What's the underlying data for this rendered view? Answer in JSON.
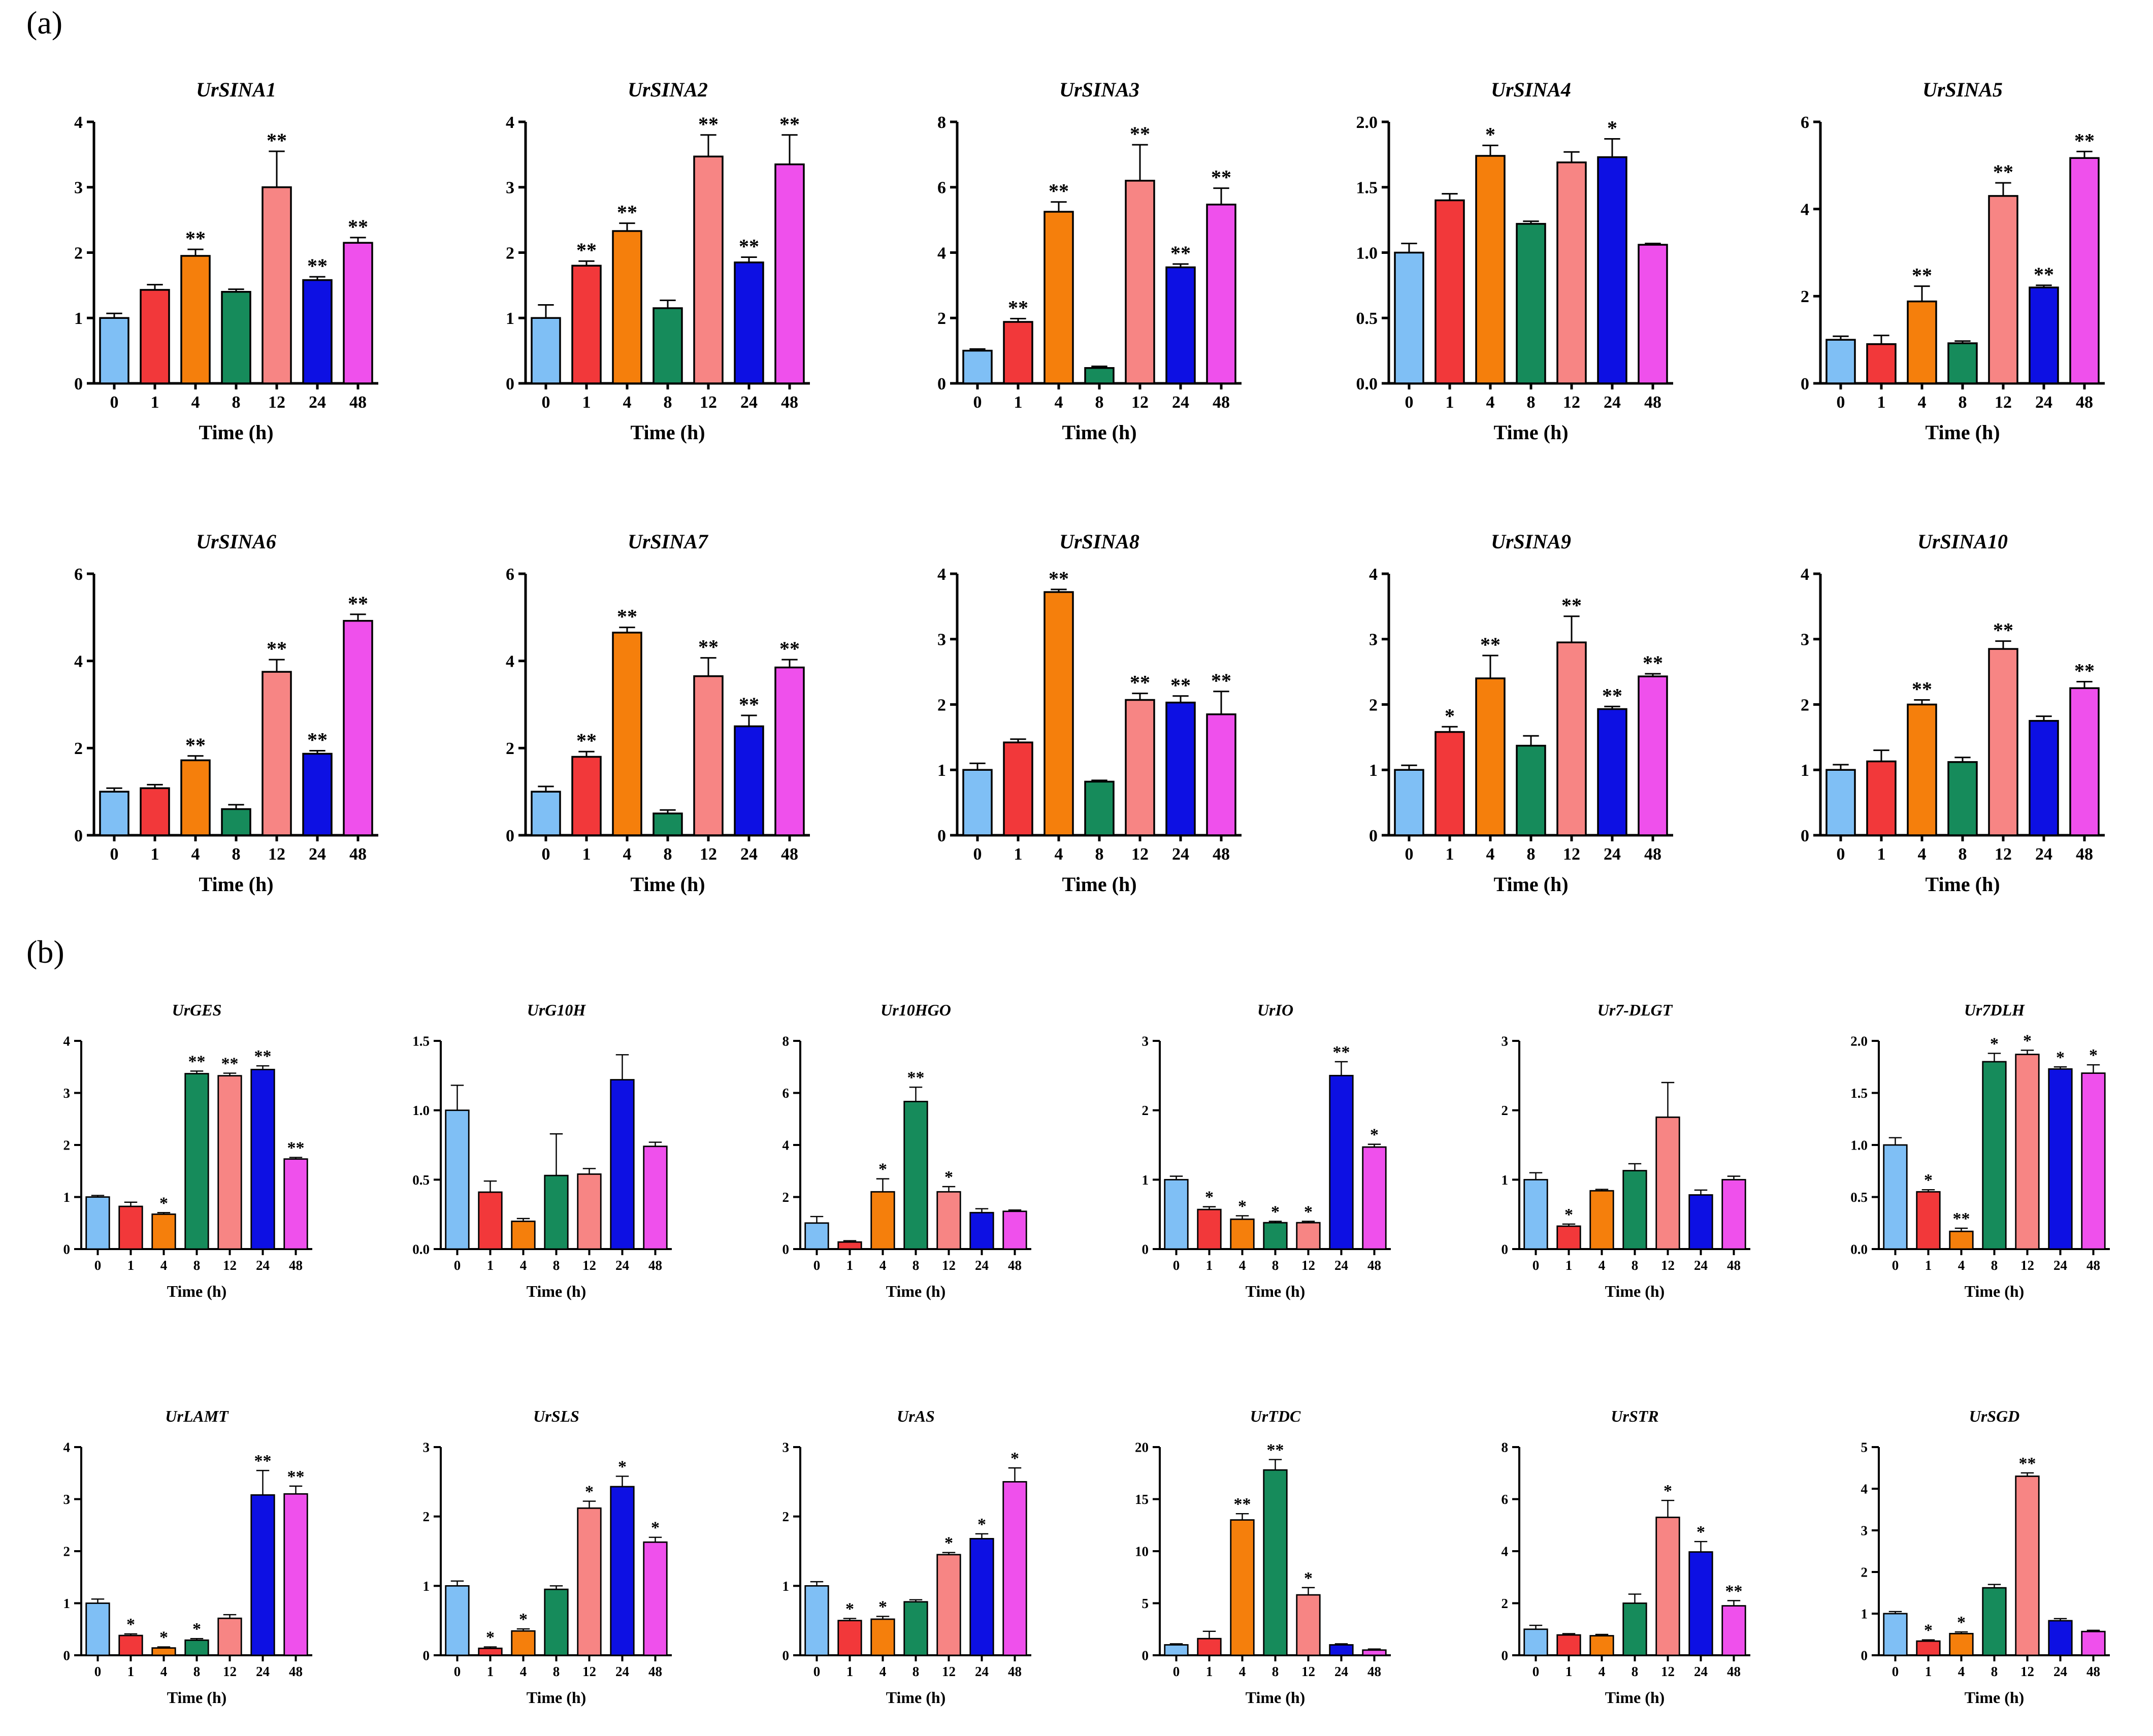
{
  "panels": {
    "a": "(a)",
    "b": "(b)"
  },
  "colors": [
    "#7fbff5",
    "#f2383a",
    "#f57f0c",
    "#168b5b",
    "#f78584",
    "#0d10e3",
    "#ef50ec"
  ],
  "chart_data": [
    {
      "type": "bar",
      "title": "UrSINA1",
      "xlabel": "Time (h)",
      "categories": [
        "0",
        "1",
        "4",
        "8",
        "12",
        "24",
        "48"
      ],
      "values": [
        1.0,
        1.43,
        1.95,
        1.4,
        3.0,
        1.58,
        2.15
      ],
      "errors": [
        0.07,
        0.08,
        0.1,
        0.04,
        0.55,
        0.05,
        0.08
      ],
      "significance": [
        "",
        "",
        "**",
        "",
        "**",
        "**",
        "**"
      ],
      "ylim": [
        0,
        4
      ],
      "yticks": [
        "0",
        "1",
        "2",
        "3",
        "4"
      ]
    },
    {
      "type": "bar",
      "title": "UrSINA2",
      "xlabel": "Time (h)",
      "categories": [
        "0",
        "1",
        "4",
        "8",
        "12",
        "24",
        "48"
      ],
      "values": [
        1.0,
        1.8,
        2.33,
        1.15,
        3.47,
        1.85,
        3.35
      ],
      "errors": [
        0.2,
        0.07,
        0.12,
        0.12,
        0.33,
        0.08,
        0.45
      ],
      "significance": [
        "",
        "**",
        "**",
        "",
        "**",
        "**",
        "**"
      ],
      "ylim": [
        0,
        4
      ],
      "yticks": [
        "0",
        "1",
        "2",
        "3",
        "4"
      ]
    },
    {
      "type": "bar",
      "title": "UrSINA3",
      "xlabel": "Time (h)",
      "categories": [
        "0",
        "1",
        "4",
        "8",
        "12",
        "24",
        "48"
      ],
      "values": [
        1.0,
        1.88,
        5.25,
        0.47,
        6.2,
        3.55,
        5.47
      ],
      "errors": [
        0.05,
        0.1,
        0.3,
        0.05,
        1.1,
        0.1,
        0.5
      ],
      "significance": [
        "",
        "**",
        "**",
        "",
        "**",
        "**",
        "**"
      ],
      "ylim": [
        0,
        8
      ],
      "yticks": [
        "0",
        "2",
        "4",
        "6",
        "8"
      ]
    },
    {
      "type": "bar",
      "title": "UrSINA4",
      "xlabel": "Time (h)",
      "categories": [
        "0",
        "1",
        "4",
        "8",
        "12",
        "24",
        "48"
      ],
      "values": [
        1.0,
        1.4,
        1.74,
        1.22,
        1.69,
        1.73,
        1.06
      ],
      "errors": [
        0.07,
        0.05,
        0.08,
        0.02,
        0.08,
        0.14,
        0.01
      ],
      "significance": [
        "",
        "",
        "*",
        "",
        "",
        "*",
        ""
      ],
      "ylim": [
        0,
        2.0
      ],
      "yticks": [
        "0.0",
        "0.5",
        "1.0",
        "1.5",
        "2.0"
      ]
    },
    {
      "type": "bar",
      "title": "UrSINA5",
      "xlabel": "Time (h)",
      "categories": [
        "0",
        "1",
        "4",
        "8",
        "12",
        "24",
        "48"
      ],
      "values": [
        1.0,
        0.9,
        1.88,
        0.92,
        4.3,
        2.2,
        5.17
      ],
      "errors": [
        0.08,
        0.2,
        0.35,
        0.05,
        0.3,
        0.05,
        0.15
      ],
      "significance": [
        "",
        "",
        "**",
        "",
        "**",
        "**",
        "**"
      ],
      "ylim": [
        0,
        6
      ],
      "yticks": [
        "0",
        "2",
        "4",
        "6"
      ]
    },
    {
      "type": "bar",
      "title": "UrSINA6",
      "xlabel": "Time (h)",
      "categories": [
        "0",
        "1",
        "4",
        "8",
        "12",
        "24",
        "48"
      ],
      "values": [
        1.0,
        1.08,
        1.72,
        0.6,
        3.75,
        1.87,
        4.92
      ],
      "errors": [
        0.08,
        0.08,
        0.1,
        0.1,
        0.28,
        0.07,
        0.15
      ],
      "significance": [
        "",
        "",
        "**",
        "",
        "**",
        "**",
        "**"
      ],
      "ylim": [
        0,
        6
      ],
      "yticks": [
        "0",
        "2",
        "4",
        "6"
      ]
    },
    {
      "type": "bar",
      "title": "UrSINA7",
      "xlabel": "Time (h)",
      "categories": [
        "0",
        "1",
        "4",
        "8",
        "12",
        "24",
        "48"
      ],
      "values": [
        1.0,
        1.8,
        4.65,
        0.5,
        3.65,
        2.5,
        3.85
      ],
      "errors": [
        0.12,
        0.12,
        0.12,
        0.08,
        0.42,
        0.25,
        0.18
      ],
      "significance": [
        "",
        "**",
        "**",
        "",
        "**",
        "**",
        "**"
      ],
      "ylim": [
        0,
        6
      ],
      "yticks": [
        "0",
        "2",
        "4",
        "6"
      ]
    },
    {
      "type": "bar",
      "title": "UrSINA8",
      "xlabel": "Time (h)",
      "categories": [
        "0",
        "1",
        "4",
        "8",
        "12",
        "24",
        "48"
      ],
      "values": [
        1.0,
        1.42,
        3.72,
        0.82,
        2.07,
        2.03,
        1.85
      ],
      "errors": [
        0.1,
        0.05,
        0.04,
        0.02,
        0.1,
        0.1,
        0.35
      ],
      "significance": [
        "",
        "",
        "**",
        "",
        "**",
        "**",
        "**"
      ],
      "ylim": [
        0,
        4
      ],
      "yticks": [
        "0",
        "1",
        "2",
        "3",
        "4"
      ]
    },
    {
      "type": "bar",
      "title": "UrSINA9",
      "xlabel": "Time (h)",
      "categories": [
        "0",
        "1",
        "4",
        "8",
        "12",
        "24",
        "48"
      ],
      "values": [
        1.0,
        1.58,
        2.4,
        1.37,
        2.95,
        1.93,
        2.43
      ],
      "errors": [
        0.07,
        0.08,
        0.35,
        0.15,
        0.4,
        0.04,
        0.04
      ],
      "significance": [
        "",
        "*",
        "**",
        "",
        "**",
        "**",
        "**"
      ],
      "ylim": [
        0,
        4
      ],
      "yticks": [
        "0",
        "1",
        "2",
        "3",
        "4"
      ]
    },
    {
      "type": "bar",
      "title": "UrSINA10",
      "xlabel": "Time (h)",
      "categories": [
        "0",
        "1",
        "4",
        "8",
        "12",
        "24",
        "48"
      ],
      "values": [
        1.0,
        1.13,
        2.0,
        1.12,
        2.85,
        1.75,
        2.25
      ],
      "errors": [
        0.08,
        0.17,
        0.07,
        0.07,
        0.12,
        0.07,
        0.1
      ],
      "significance": [
        "",
        "",
        "**",
        "",
        "**",
        "",
        "**"
      ],
      "ylim": [
        0,
        4
      ],
      "yticks": [
        "0",
        "1",
        "2",
        "3",
        "4"
      ]
    },
    {
      "type": "bar",
      "title": "UrGES",
      "xlabel": "Time (h)",
      "categories": [
        "0",
        "1",
        "4",
        "8",
        "12",
        "24",
        "48"
      ],
      "values": [
        1.0,
        0.82,
        0.67,
        3.37,
        3.33,
        3.45,
        1.73
      ],
      "errors": [
        0.03,
        0.08,
        0.03,
        0.05,
        0.05,
        0.07,
        0.03
      ],
      "significance": [
        "",
        "",
        "*",
        "**",
        "**",
        "**",
        "**"
      ],
      "ylim": [
        0,
        4
      ],
      "yticks": [
        "0",
        "1",
        "2",
        "3",
        "4"
      ]
    },
    {
      "type": "bar",
      "title": "UrG10H",
      "xlabel": "Time (h)",
      "categories": [
        "0",
        "1",
        "4",
        "8",
        "12",
        "24",
        "48"
      ],
      "values": [
        1.0,
        0.41,
        0.2,
        0.53,
        0.54,
        1.22,
        0.74
      ],
      "errors": [
        0.18,
        0.08,
        0.02,
        0.3,
        0.04,
        0.18,
        0.03
      ],
      "significance": [
        "",
        "",
        "",
        "",
        "",
        "",
        ""
      ],
      "ylim": [
        0,
        1.5
      ],
      "yticks": [
        "0.0",
        "0.5",
        "1.0",
        "1.5"
      ]
    },
    {
      "type": "bar",
      "title": "Ur10HGO",
      "xlabel": "Time (h)",
      "categories": [
        "0",
        "1",
        "4",
        "8",
        "12",
        "24",
        "48"
      ],
      "values": [
        1.0,
        0.27,
        2.2,
        5.67,
        2.2,
        1.4,
        1.45
      ],
      "errors": [
        0.25,
        0.05,
        0.5,
        0.55,
        0.2,
        0.15,
        0.05
      ],
      "significance": [
        "",
        "",
        "*",
        "**",
        "*",
        "",
        ""
      ],
      "ylim": [
        0,
        8
      ],
      "yticks": [
        "0",
        "2",
        "4",
        "6",
        "8"
      ]
    },
    {
      "type": "bar",
      "title": "UrIO",
      "xlabel": "Time (h)",
      "categories": [
        "0",
        "1",
        "4",
        "8",
        "12",
        "24",
        "48"
      ],
      "values": [
        1.0,
        0.57,
        0.43,
        0.38,
        0.38,
        2.5,
        1.47
      ],
      "errors": [
        0.05,
        0.04,
        0.05,
        0.02,
        0.02,
        0.2,
        0.04
      ],
      "significance": [
        "",
        "*",
        "*",
        "*",
        "*",
        "**",
        "*"
      ],
      "ylim": [
        0,
        3
      ],
      "yticks": [
        "0",
        "1",
        "2",
        "3"
      ]
    },
    {
      "type": "bar",
      "title": "Ur7-DLGT",
      "xlabel": "Time (h)",
      "categories": [
        "0",
        "1",
        "4",
        "8",
        "12",
        "24",
        "48"
      ],
      "values": [
        1.0,
        0.33,
        0.84,
        1.13,
        1.9,
        0.78,
        1.0
      ],
      "errors": [
        0.1,
        0.03,
        0.02,
        0.1,
        0.5,
        0.07,
        0.05
      ],
      "significance": [
        "",
        "*",
        "",
        "",
        "",
        "",
        ""
      ],
      "ylim": [
        0,
        3
      ],
      "yticks": [
        "0",
        "1",
        "2",
        "3"
      ]
    },
    {
      "type": "bar",
      "title": "Ur7DLH",
      "xlabel": "Time (h)",
      "categories": [
        "0",
        "1",
        "4",
        "8",
        "12",
        "24",
        "48"
      ],
      "values": [
        1.0,
        0.55,
        0.17,
        1.8,
        1.87,
        1.73,
        1.69
      ],
      "errors": [
        0.07,
        0.02,
        0.03,
        0.08,
        0.04,
        0.02,
        0.08
      ],
      "significance": [
        "",
        "*",
        "**",
        "*",
        "*",
        "*",
        "*"
      ],
      "ylim": [
        0,
        2.0
      ],
      "yticks": [
        "0.0",
        "0.5",
        "1.0",
        "1.5",
        "2.0"
      ]
    },
    {
      "type": "bar",
      "title": "UrLAMT",
      "xlabel": "Time (h)",
      "categories": [
        "0",
        "1",
        "4",
        "8",
        "12",
        "24",
        "48"
      ],
      "values": [
        1.0,
        0.38,
        0.14,
        0.29,
        0.71,
        3.08,
        3.1
      ],
      "errors": [
        0.08,
        0.03,
        0.02,
        0.03,
        0.07,
        0.47,
        0.15
      ],
      "significance": [
        "",
        "*",
        "*",
        "*",
        "",
        "**",
        "**"
      ],
      "ylim": [
        0,
        4
      ],
      "yticks": [
        "0",
        "1",
        "2",
        "3",
        "4"
      ]
    },
    {
      "type": "bar",
      "title": "UrSLS",
      "xlabel": "Time (h)",
      "categories": [
        "0",
        "1",
        "4",
        "8",
        "12",
        "24",
        "48"
      ],
      "values": [
        1.0,
        0.1,
        0.35,
        0.95,
        2.12,
        2.43,
        1.63
      ],
      "errors": [
        0.07,
        0.02,
        0.03,
        0.05,
        0.1,
        0.15,
        0.07
      ],
      "significance": [
        "",
        "*",
        "*",
        "",
        "*",
        "*",
        "*"
      ],
      "ylim": [
        0,
        3
      ],
      "yticks": [
        "0",
        "1",
        "2",
        "3"
      ]
    },
    {
      "type": "bar",
      "title": "UrAS",
      "xlabel": "Time (h)",
      "categories": [
        "0",
        "1",
        "4",
        "8",
        "12",
        "24",
        "48"
      ],
      "values": [
        1.0,
        0.5,
        0.52,
        0.77,
        1.45,
        1.68,
        2.5
      ],
      "errors": [
        0.06,
        0.03,
        0.04,
        0.03,
        0.03,
        0.07,
        0.2
      ],
      "significance": [
        "",
        "*",
        "*",
        "",
        "*",
        "*",
        "*"
      ],
      "ylim": [
        0,
        3
      ],
      "yticks": [
        "0",
        "1",
        "2",
        "3"
      ]
    },
    {
      "type": "bar",
      "title": "UrTDC",
      "xlabel": "Time (h)",
      "categories": [
        "0",
        "1",
        "4",
        "8",
        "12",
        "24",
        "48"
      ],
      "values": [
        1.0,
        1.6,
        13.0,
        17.8,
        5.8,
        1.0,
        0.5
      ],
      "errors": [
        0.1,
        0.7,
        0.6,
        1.0,
        0.7,
        0.1,
        0.1
      ],
      "significance": [
        "",
        "",
        "**",
        "**",
        "*",
        "",
        ""
      ],
      "ylim": [
        0,
        20
      ],
      "yticks": [
        "0",
        "5",
        "10",
        "15",
        "20"
      ]
    },
    {
      "type": "bar",
      "title": "UrSTR",
      "xlabel": "Time (h)",
      "categories": [
        "0",
        "1",
        "4",
        "8",
        "12",
        "24",
        "48"
      ],
      "values": [
        1.0,
        0.78,
        0.75,
        2.0,
        5.3,
        3.97,
        1.9
      ],
      "errors": [
        0.15,
        0.05,
        0.05,
        0.35,
        0.65,
        0.4,
        0.2
      ],
      "significance": [
        "",
        "",
        "",
        "",
        "*",
        "*",
        "**"
      ],
      "ylim": [
        0,
        8
      ],
      "yticks": [
        "0",
        "2",
        "4",
        "6",
        "8"
      ]
    },
    {
      "type": "bar",
      "title": "UrSGD",
      "xlabel": "Time (h)",
      "categories": [
        "0",
        "1",
        "4",
        "8",
        "12",
        "24",
        "48"
      ],
      "values": [
        1.0,
        0.34,
        0.52,
        1.62,
        4.3,
        0.83,
        0.57
      ],
      "errors": [
        0.05,
        0.03,
        0.04,
        0.08,
        0.08,
        0.05,
        0.03
      ],
      "significance": [
        "",
        "*",
        "*",
        "",
        "**",
        "",
        ""
      ],
      "ylim": [
        0,
        5
      ],
      "yticks": [
        "0",
        "1",
        "2",
        "3",
        "4",
        "5"
      ]
    }
  ]
}
